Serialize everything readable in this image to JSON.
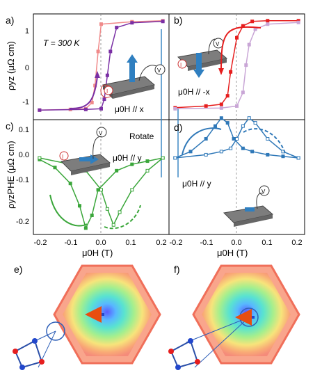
{
  "panels": {
    "a": {
      "label": "a)",
      "temp": "T = 300 K",
      "field": "μ0H // x"
    },
    "b": {
      "label": "b)",
      "field": "μ0H // -x"
    },
    "c": {
      "label": "c)",
      "rotate": "Rotate",
      "field": "μ0H // y"
    },
    "d": {
      "label": "d)",
      "field": "μ0H // y"
    },
    "e": {
      "label": "e)"
    },
    "f": {
      "label": "f)"
    }
  },
  "axes": {
    "top_ylabel": "ρyz (μΩ cm)",
    "bottom_ylabel": "ρyzPHE (μΩ cm)",
    "xlabel": "μ0H (T)",
    "top_yticks": [
      "1",
      "0",
      "-1"
    ],
    "bottom_yticks": [
      "0.1",
      "0.0",
      "-0.1",
      "-0.2"
    ],
    "xticks_left": [
      "-0.2",
      "-0.1",
      "0.0",
      "0.1",
      "0.2"
    ],
    "xticks_right": [
      "-0.2",
      "-0.1",
      "0.0",
      "0.1",
      "0.2"
    ]
  },
  "probes": {
    "current": "I",
    "voltage": "V"
  },
  "colors": {
    "purple": "#7a2fa4",
    "pink": "#f08a8a",
    "red": "#e61e1e",
    "lavender": "#c9a6d6",
    "green": "#3aa63a",
    "blue": "#2f78b8",
    "arrow_blue": "#2f7fc0"
  },
  "chart_data": [
    {
      "type": "scatter",
      "panel": "a",
      "xlim": [
        -0.22,
        0.22
      ],
      "ylim": [
        -1.6,
        1.5
      ],
      "series": [
        {
          "x": [
            -0.2,
            -0.1,
            -0.05,
            -0.03,
            -0.02,
            -0.01,
            0.0,
            0.1,
            0.2
          ],
          "y": [
            -1.32,
            -1.3,
            -1.28,
            -1.1,
            -0.6,
            0.4,
            1.2,
            1.27,
            1.3
          ]
        },
        {
          "x": [
            -0.2,
            -0.05,
            0.0,
            0.01,
            0.02,
            0.03,
            0.05,
            0.1,
            0.2
          ],
          "y": [
            -1.32,
            -1.3,
            -1.28,
            -1.0,
            -0.3,
            0.4,
            1.1,
            1.24,
            1.28
          ]
        }
      ]
    },
    {
      "type": "scatter",
      "panel": "b",
      "xlim": [
        -0.22,
        0.22
      ],
      "ylim": [
        -1.6,
        1.5
      ],
      "series": [
        {
          "x": [
            -0.2,
            -0.1,
            -0.05,
            -0.03,
            -0.02,
            0.0,
            0.02,
            0.05,
            0.1,
            0.2
          ],
          "y": [
            -1.25,
            -1.2,
            -1.15,
            -0.9,
            -0.2,
            0.8,
            1.15,
            1.28,
            1.3,
            1.3
          ]
        },
        {
          "x": [
            -0.2,
            -0.05,
            0.0,
            0.02,
            0.03,
            0.04,
            0.06,
            0.1,
            0.2
          ],
          "y": [
            -1.28,
            -1.26,
            -1.2,
            -0.8,
            0.0,
            0.6,
            1.05,
            1.2,
            1.25
          ]
        }
      ]
    },
    {
      "type": "scatter",
      "panel": "c",
      "xlim": [
        -0.22,
        0.22
      ],
      "ylim": [
        -0.24,
        0.12
      ],
      "series": [
        {
          "x": [
            -0.2,
            -0.15,
            -0.1,
            -0.07,
            -0.05,
            -0.03,
            -0.01,
            0.05,
            0.1,
            0.15,
            0.2
          ],
          "y": [
            -0.005,
            -0.03,
            -0.08,
            -0.15,
            -0.22,
            -0.18,
            -0.1,
            -0.04,
            -0.02,
            -0.01,
            0.0
          ]
        },
        {
          "x": [
            -0.2,
            -0.1,
            -0.05,
            0.0,
            0.02,
            0.04,
            0.06,
            0.1,
            0.15,
            0.2
          ],
          "y": [
            0.0,
            -0.02,
            -0.04,
            -0.1,
            -0.16,
            -0.21,
            -0.17,
            -0.1,
            -0.04,
            0.0
          ]
        }
      ]
    },
    {
      "type": "scatter",
      "panel": "d",
      "xlim": [
        -0.22,
        0.22
      ],
      "ylim": [
        -0.24,
        0.12
      ],
      "series": [
        {
          "x": [
            -0.2,
            -0.15,
            -0.1,
            -0.07,
            -0.05,
            -0.03,
            -0.01,
            0.02,
            0.05,
            0.1,
            0.15,
            0.2
          ],
          "y": [
            0.0,
            0.02,
            0.06,
            0.1,
            0.125,
            0.11,
            0.06,
            0.03,
            0.02,
            0.01,
            0.005,
            0.0
          ]
        },
        {
          "x": [
            -0.2,
            -0.1,
            -0.05,
            -0.02,
            0.0,
            0.02,
            0.04,
            0.06,
            0.1,
            0.15,
            0.2
          ],
          "y": [
            0.0,
            0.01,
            0.02,
            0.03,
            0.06,
            0.1,
            0.125,
            0.11,
            0.06,
            0.02,
            0.0
          ]
        }
      ]
    }
  ]
}
